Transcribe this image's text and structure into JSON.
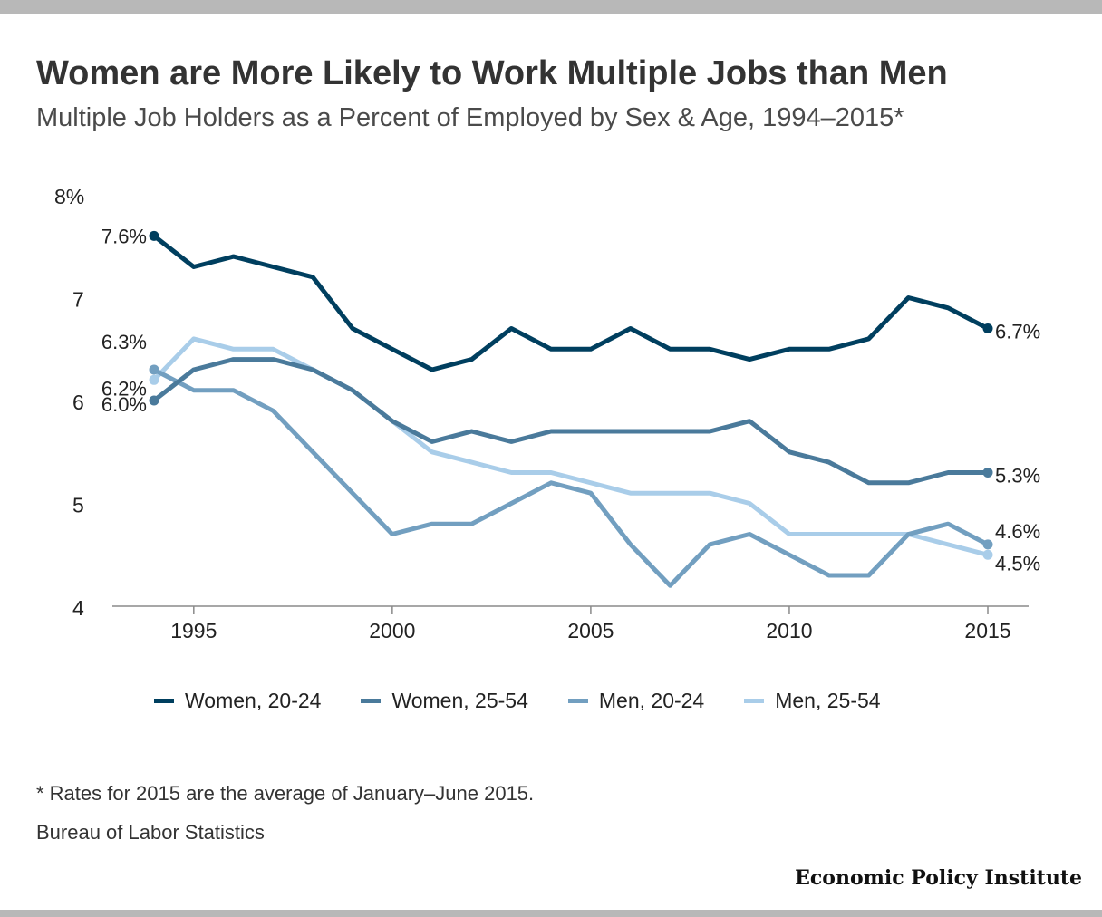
{
  "header": {
    "title": "Women are More Likely to Work Multiple Jobs than Men",
    "subtitle": "Multiple Job Holders as a Percent of Employed by Sex & Age, 1994–2015*"
  },
  "footer": {
    "note": "* Rates for 2015 are the average of January–June 2015.",
    "source": "Bureau of Labor Statistics",
    "logo": "Economic Policy Institute"
  },
  "chart_data": {
    "type": "line",
    "title": "Women are More Likely to Work Multiple Jobs than Men",
    "subtitle": "Multiple Job Holders as a Percent of Employed by Sex & Age, 1994–2015*",
    "xlabel": "",
    "ylabel": "",
    "xlim": [
      1993,
      2016
    ],
    "ylim": [
      4,
      8
    ],
    "x_ticks": [
      1995,
      2000,
      2005,
      2010,
      2015
    ],
    "x_tick_labels": [
      "1995",
      "2000",
      "2005",
      "2010",
      "2015"
    ],
    "y_ticks": [
      4,
      5,
      6,
      7,
      8
    ],
    "y_tick_labels": [
      "4",
      "5",
      "6",
      "7",
      "8%"
    ],
    "grid": false,
    "legend_position": "bottom",
    "x": [
      1994,
      1995,
      1996,
      1997,
      1998,
      1999,
      2000,
      2001,
      2002,
      2003,
      2004,
      2005,
      2006,
      2007,
      2008,
      2009,
      2010,
      2011,
      2012,
      2013,
      2014,
      2015
    ],
    "series": [
      {
        "name": "Women, 20-24",
        "color": "#003f5f",
        "values": [
          7.6,
          7.3,
          7.4,
          7.3,
          7.2,
          6.7,
          6.5,
          6.3,
          6.4,
          6.7,
          6.5,
          6.5,
          6.7,
          6.5,
          6.5,
          6.4,
          6.5,
          6.5,
          6.6,
          7.0,
          6.9,
          6.7
        ],
        "start_label": "7.6%",
        "end_label": "6.7%"
      },
      {
        "name": "Women, 25-54",
        "color": "#4a7a9b",
        "values": [
          6.0,
          6.3,
          6.4,
          6.4,
          6.3,
          6.1,
          5.8,
          5.6,
          5.7,
          5.6,
          5.7,
          5.7,
          5.7,
          5.7,
          5.7,
          5.8,
          5.5,
          5.4,
          5.2,
          5.2,
          5.3,
          5.3
        ],
        "start_label": "6.0%",
        "end_label": "5.3%"
      },
      {
        "name": "Men, 20-24",
        "color": "#729fc0",
        "values": [
          6.3,
          6.1,
          6.1,
          5.9,
          5.5,
          5.1,
          4.7,
          4.8,
          4.8,
          5.0,
          5.2,
          5.1,
          4.6,
          4.2,
          4.6,
          4.7,
          4.5,
          4.3,
          4.3,
          4.7,
          4.8,
          4.6
        ],
        "start_label": "6.3%",
        "end_label": "4.6%"
      },
      {
        "name": "Men, 25-54",
        "color": "#a9cde9",
        "values": [
          6.2,
          6.6,
          6.5,
          6.5,
          6.3,
          6.1,
          5.8,
          5.5,
          5.4,
          5.3,
          5.3,
          5.2,
          5.1,
          5.1,
          5.1,
          5.0,
          4.7,
          4.7,
          4.7,
          4.7,
          4.6,
          4.5
        ],
        "start_label": "6.2%",
        "end_label": "4.5%"
      }
    ]
  }
}
